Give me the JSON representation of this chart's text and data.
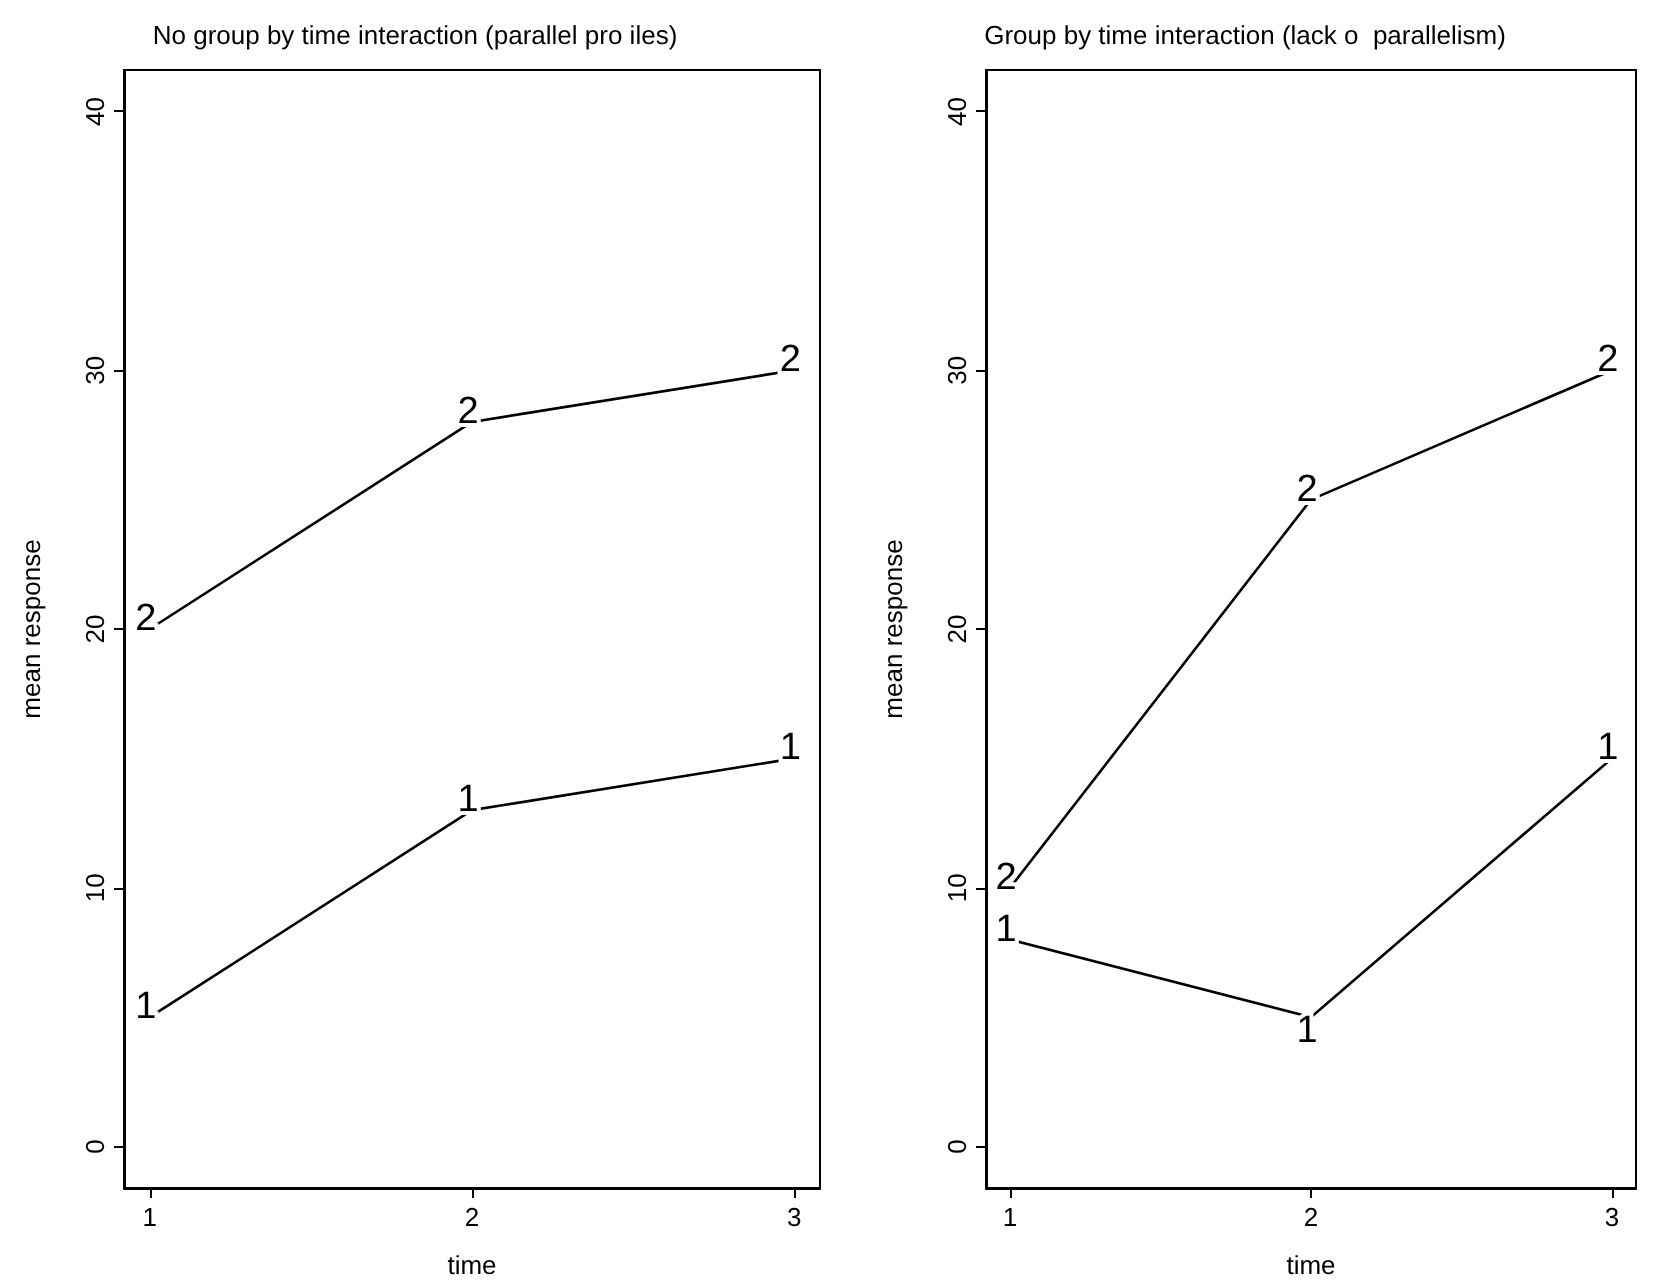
{
  "chart_data": [
    {
      "type": "line",
      "title": "No group by time interaction (parallel pro iles)",
      "xlabel": "time",
      "ylabel": "mean response",
      "x": [
        1,
        2,
        3
      ],
      "xlim": [
        0.92,
        3.08
      ],
      "xticks": [
        1,
        2,
        3
      ],
      "ylim": [
        -1.6,
        41.6
      ],
      "yticks": [
        0,
        10,
        20,
        30,
        40
      ],
      "legend": false,
      "grid": false,
      "marker": "none",
      "series": [
        {
          "name": "1",
          "color": "#000000",
          "values": [
            5,
            13,
            15
          ]
        },
        {
          "name": "2",
          "color": "#000000",
          "values": [
            20,
            28,
            30
          ]
        }
      ]
    },
    {
      "type": "line",
      "title": "Group by time interaction (lack o  parallelism)",
      "xlabel": "time",
      "ylabel": "mean response",
      "x": [
        1,
        2,
        3
      ],
      "xlim": [
        0.92,
        3.08
      ],
      "xticks": [
        1,
        2,
        3
      ],
      "ylim": [
        -1.6,
        41.6
      ],
      "yticks": [
        0,
        10,
        20,
        30,
        40
      ],
      "legend": false,
      "grid": false,
      "marker": "none",
      "series": [
        {
          "name": "1",
          "color": "#000000",
          "values": [
            8,
            5,
            15
          ]
        },
        {
          "name": "2",
          "color": "#000000",
          "values": [
            10,
            25,
            30
          ]
        }
      ]
    }
  ]
}
